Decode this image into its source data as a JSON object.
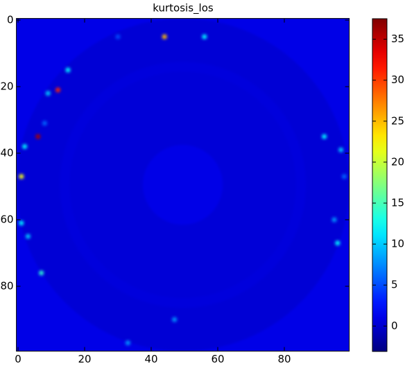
{
  "chart_data": {
    "type": "heatmap",
    "title": "kurtosis_los",
    "colormap": "jet",
    "xlim": [
      -0.5,
      99.5
    ],
    "ylim": [
      99.5,
      -0.5
    ],
    "xticks": [
      0,
      20,
      40,
      60,
      80
    ],
    "yticks": [
      0,
      20,
      40,
      60,
      80
    ],
    "clim": [
      -3.1,
      37.5
    ],
    "cticks": [
      0,
      5,
      10,
      15,
      20,
      25,
      30,
      35
    ],
    "background": 1,
    "regions": [
      {
        "cx": 49.5,
        "cy": 49.5,
        "r": 50,
        "value": 0.3
      },
      {
        "cx": 49.5,
        "cy": 49.5,
        "r": 37,
        "value": 0.6
      },
      {
        "cx": 49.5,
        "cy": 49.5,
        "r": 34,
        "value": 0.4
      },
      {
        "cx": 49.5,
        "cy": 49.5,
        "r": 12,
        "value": 1
      }
    ],
    "spots": [
      {
        "x": 44,
        "y": 5,
        "value": 25
      },
      {
        "x": 56,
        "y": 5,
        "value": 12
      },
      {
        "x": 12,
        "y": 21,
        "value": 31
      },
      {
        "x": 6,
        "y": 35,
        "value": 36
      },
      {
        "x": 1,
        "y": 47,
        "value": 22
      },
      {
        "x": 2,
        "y": 38,
        "value": 12
      },
      {
        "x": 15,
        "y": 15,
        "value": 12
      },
      {
        "x": 9,
        "y": 22,
        "value": 10
      },
      {
        "x": 1,
        "y": 61,
        "value": 12
      },
      {
        "x": 3,
        "y": 65,
        "value": 10
      },
      {
        "x": 7,
        "y": 76,
        "value": 14
      },
      {
        "x": 92,
        "y": 35,
        "value": 12
      },
      {
        "x": 97,
        "y": 39,
        "value": 10
      },
      {
        "x": 96,
        "y": 67,
        "value": 12
      },
      {
        "x": 47,
        "y": 90,
        "value": 8
      },
      {
        "x": 33,
        "y": 97,
        "value": 8
      },
      {
        "x": 98,
        "y": 47,
        "value": 6
      },
      {
        "x": 95,
        "y": 60,
        "value": 8
      },
      {
        "x": 30,
        "y": 5,
        "value": 5
      },
      {
        "x": 8,
        "y": 31,
        "value": 6
      }
    ]
  }
}
